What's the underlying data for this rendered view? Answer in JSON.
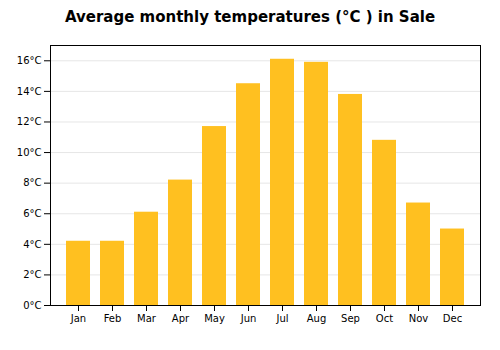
{
  "chart_data": {
    "type": "bar",
    "title": "Average monthly temperatures (°C ) in Sale",
    "categories": [
      "Jan",
      "Feb",
      "Mar",
      "Apr",
      "May",
      "Jun",
      "Jul",
      "Aug",
      "Sep",
      "Oct",
      "Nov",
      "Dec"
    ],
    "values": [
      4.2,
      4.2,
      6.1,
      8.2,
      11.7,
      14.5,
      16.1,
      15.9,
      13.8,
      10.8,
      6.7,
      5.0
    ],
    "color": "#FFC020",
    "ylim": [
      0,
      17
    ],
    "yticks": [
      {
        "value": 0,
        "label": "0°C"
      },
      {
        "value": 2,
        "label": "2°C"
      },
      {
        "value": 4,
        "label": "4°C"
      },
      {
        "value": 6,
        "label": "6°C"
      },
      {
        "value": 8,
        "label": "8°C"
      },
      {
        "value": 10,
        "label": "10°C"
      },
      {
        "value": 12,
        "label": "12°C"
      },
      {
        "value": 14,
        "label": "14°C"
      },
      {
        "value": 16,
        "label": "16°C"
      }
    ],
    "grid": true
  }
}
